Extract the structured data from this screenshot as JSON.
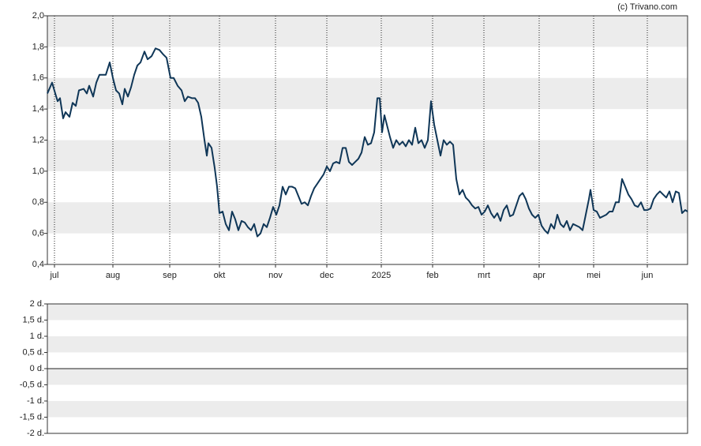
{
  "chart_data": [
    {
      "type": "line",
      "source": "(c) Trivano.com",
      "color": "#0f3657",
      "xlim": [
        0,
        202.75
      ],
      "xticks": [
        {
          "value": 2.25,
          "label": "jul"
        },
        {
          "value": 20.75,
          "label": "aug"
        },
        {
          "value": 38.75,
          "label": "sep"
        },
        {
          "value": 54.5,
          "label": "okt"
        },
        {
          "value": 72.25,
          "label": "nov"
        },
        {
          "value": 88.5,
          "label": "dec"
        },
        {
          "value": 105.75,
          "label": "2025"
        },
        {
          "value": 122,
          "label": "feb"
        },
        {
          "value": 138.25,
          "label": "mrt"
        },
        {
          "value": 155.75,
          "label": "apr"
        },
        {
          "value": 173,
          "label": "mei"
        },
        {
          "value": 190,
          "label": "jun"
        }
      ],
      "ylim": [
        0.4,
        2.0
      ],
      "yticks": [
        {
          "value": 0.4,
          "label": "0,4"
        },
        {
          "value": 0.6,
          "label": "0,6"
        },
        {
          "value": 0.8,
          "label": "0,8"
        },
        {
          "value": 1.0,
          "label": "1,0"
        },
        {
          "value": 1.2,
          "label": "1,2"
        },
        {
          "value": 1.4,
          "label": "1,4"
        },
        {
          "value": 1.6,
          "label": "1,6"
        },
        {
          "value": 1.8,
          "label": "1,8"
        },
        {
          "value": 2.0,
          "label": "2,0"
        }
      ],
      "grid": true,
      "x": [
        0,
        1.5,
        2.5,
        3.25,
        4,
        5,
        5.75,
        7,
        8,
        9,
        10,
        11.5,
        12.5,
        13.25,
        14.5,
        15.5,
        16.5,
        17.5,
        18.5,
        19.75,
        20.75,
        21.75,
        22.75,
        23.75,
        24.5,
        25.5,
        26.5,
        27.5,
        28.5,
        29.5,
        30.75,
        31.75,
        33,
        34.25,
        35.5,
        36.75,
        37.75,
        39,
        40,
        41.25,
        42.5,
        43.5,
        44.5,
        45.75,
        46.75,
        47.75,
        48.75,
        49.75,
        50.5,
        51,
        52,
        53,
        53.75,
        54.5,
        55.5,
        56.5,
        57.5,
        58.5,
        59.5,
        60.5,
        61.5,
        62.5,
        63.5,
        64.5,
        65.5,
        66.5,
        67.5,
        68.5,
        69.5,
        70.5,
        71.5,
        72.5,
        73.5,
        74.5,
        75.5,
        76.5,
        77.5,
        78.5,
        79.5,
        80.5,
        81.5,
        82.5,
        83.5,
        84.5,
        85.5,
        86.5,
        87.5,
        88.5,
        89.5,
        90.5,
        91.5,
        92.5,
        93.5,
        94.5,
        95.5,
        96.5,
        97.5,
        98.5,
        99.5,
        100.5,
        101.5,
        102.5,
        103.5,
        104.5,
        105.25,
        106,
        106.75,
        107.5,
        108.5,
        109.5,
        110.5,
        111.5,
        112.5,
        113.5,
        114.5,
        115.5,
        116.5,
        117.5,
        118.5,
        119.5,
        120.5,
        121.5,
        122.5,
        123.5,
        124.5,
        125.5,
        126.5,
        127.5,
        128.5,
        129.5,
        130.5,
        131.5,
        132.5,
        133.5,
        134.5,
        135.5,
        136.5,
        137.5,
        138.5,
        139.5,
        140.5,
        141.5,
        142.5,
        143.5,
        144.5,
        145.5,
        146.5,
        147.5,
        148.5,
        149.5,
        150.5,
        151.5,
        152.5,
        153.5,
        154.5,
        155.5,
        156.5,
        157.5,
        158.5,
        159.5,
        160.5,
        161.5,
        162.5,
        163.5,
        164.5,
        165.5,
        166.5,
        167.5,
        168.5,
        169.5,
        170.5,
        171.5,
        172,
        173,
        174,
        175,
        176,
        177,
        178,
        179,
        180,
        181,
        182,
        183,
        184,
        185,
        186,
        187,
        188,
        189,
        190,
        191,
        192,
        193,
        194,
        195,
        196,
        197,
        198,
        199,
        200,
        201,
        202,
        202.75
      ],
      "values": [
        1.5,
        1.57,
        1.5,
        1.45,
        1.47,
        1.34,
        1.38,
        1.35,
        1.44,
        1.42,
        1.52,
        1.53,
        1.5,
        1.55,
        1.48,
        1.57,
        1.62,
        1.62,
        1.62,
        1.7,
        1.6,
        1.52,
        1.5,
        1.43,
        1.53,
        1.48,
        1.54,
        1.62,
        1.68,
        1.7,
        1.77,
        1.72,
        1.74,
        1.79,
        1.78,
        1.75,
        1.73,
        1.6,
        1.6,
        1.55,
        1.52,
        1.45,
        1.48,
        1.47,
        1.47,
        1.44,
        1.35,
        1.2,
        1.1,
        1.18,
        1.15,
        1.02,
        0.9,
        0.73,
        0.74,
        0.66,
        0.62,
        0.74,
        0.69,
        0.62,
        0.68,
        0.67,
        0.64,
        0.62,
        0.66,
        0.58,
        0.6,
        0.66,
        0.64,
        0.7,
        0.77,
        0.72,
        0.78,
        0.9,
        0.85,
        0.9,
        0.9,
        0.89,
        0.84,
        0.79,
        0.8,
        0.78,
        0.84,
        0.89,
        0.92,
        0.95,
        0.98,
        1.03,
        1.0,
        1.05,
        1.06,
        1.05,
        1.15,
        1.15,
        1.06,
        1.04,
        1.06,
        1.08,
        1.12,
        1.22,
        1.17,
        1.18,
        1.25,
        1.47,
        1.47,
        1.25,
        1.36,
        1.3,
        1.22,
        1.15,
        1.2,
        1.17,
        1.19,
        1.16,
        1.2,
        1.17,
        1.28,
        1.18,
        1.2,
        1.15,
        1.2,
        1.45,
        1.3,
        1.2,
        1.1,
        1.2,
        1.17,
        1.19,
        1.17,
        0.95,
        0.85,
        0.88,
        0.83,
        0.81,
        0.78,
        0.76,
        0.77,
        0.72,
        0.74,
        0.78,
        0.73,
        0.7,
        0.73,
        0.68,
        0.75,
        0.78,
        0.71,
        0.72,
        0.78,
        0.84,
        0.86,
        0.82,
        0.76,
        0.72,
        0.7,
        0.72,
        0.65,
        0.62,
        0.6,
        0.66,
        0.63,
        0.72,
        0.66,
        0.64,
        0.68,
        0.62,
        0.66,
        0.65,
        0.64,
        0.62,
        0.72,
        0.82,
        0.88,
        0.75,
        0.74,
        0.7,
        0.71,
        0.72,
        0.74,
        0.74,
        0.8,
        0.8,
        0.95,
        0.9,
        0.85,
        0.82,
        0.78,
        0.77,
        0.8,
        0.75,
        0.75,
        0.76,
        0.82,
        0.85,
        0.87,
        0.85,
        0.83,
        0.87,
        0.8,
        0.87,
        0.86,
        0.73,
        0.75,
        0.74
      ]
    },
    {
      "type": "line",
      "ylim": [
        -2,
        2
      ],
      "yticks": [
        {
          "value": -2,
          "label": "-2 d."
        },
        {
          "value": -1.5,
          "label": "-1,5 d."
        },
        {
          "value": -1,
          "label": "-1 d."
        },
        {
          "value": -0.5,
          "label": "-0,5 d."
        },
        {
          "value": 0,
          "label": "0 d."
        },
        {
          "value": 0.5,
          "label": "0,5 d."
        },
        {
          "value": 1,
          "label": "1 d."
        },
        {
          "value": 1.5,
          "label": "1,5 d."
        },
        {
          "value": 2,
          "label": "2 d."
        }
      ],
      "grid": true
    }
  ]
}
